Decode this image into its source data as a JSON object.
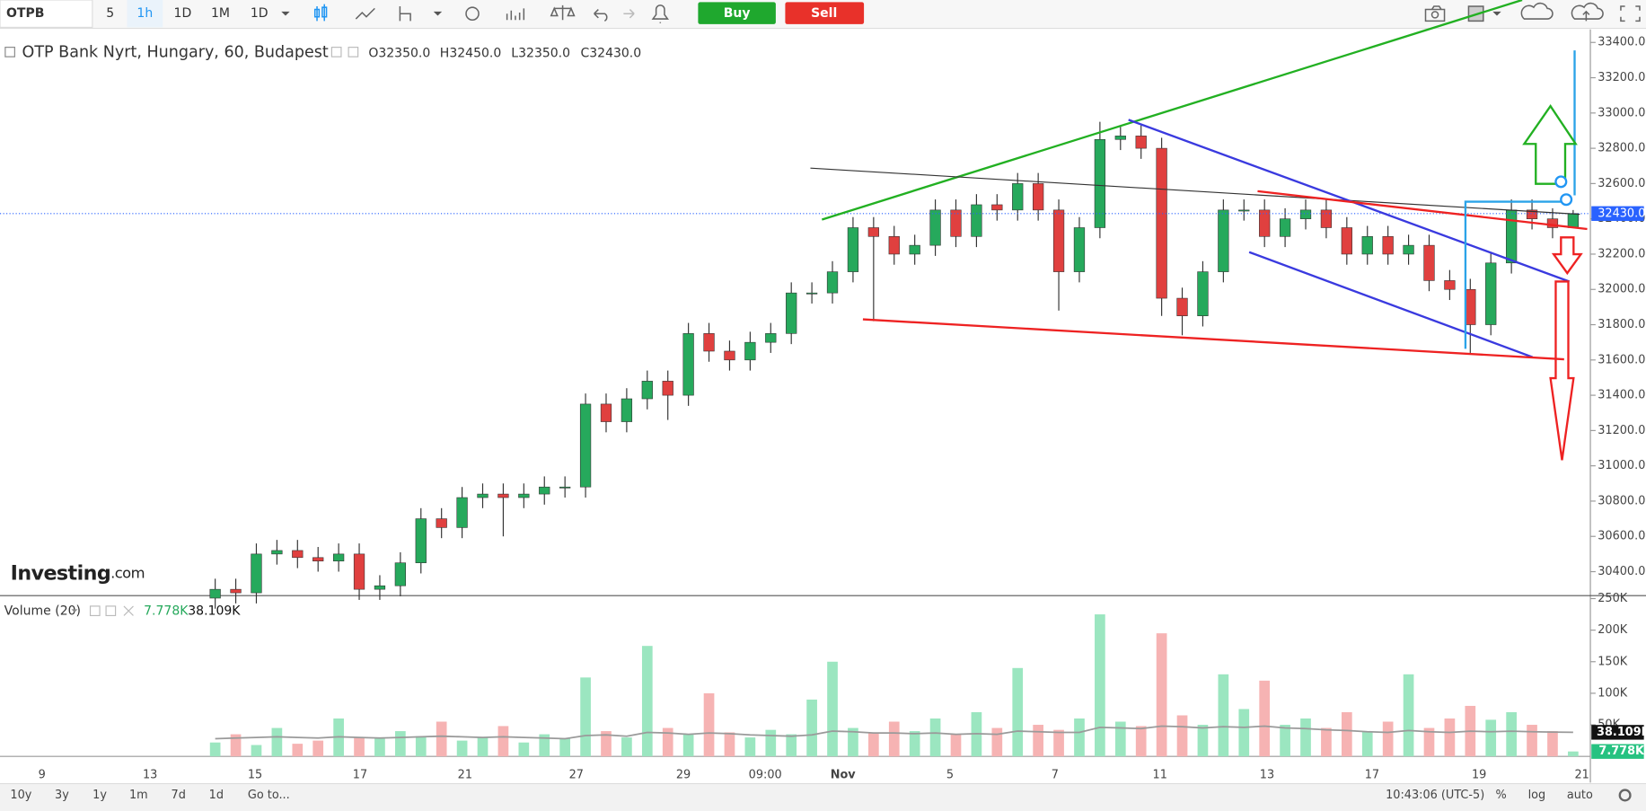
{
  "toolbar": {
    "symbol": "OTPB",
    "intervals": [
      "5",
      "1h",
      "1D",
      "1M",
      "1D"
    ],
    "buy": "Buy",
    "sell": "Sell"
  },
  "header": {
    "title": "OTP Bank Nyrt, Hungary, 60, Budapest",
    "open": "O32350.0",
    "high": "H32450.0",
    "low": "L32350.0",
    "close": "C32430.0"
  },
  "logo": {
    "brand": "Investing",
    "suffix": ".com"
  },
  "chart_data": {
    "type": "candlestick",
    "open": [
      30250,
      30300,
      30280,
      30500,
      30520,
      30480,
      30460,
      30500,
      30300,
      30320,
      30450,
      30700,
      30650,
      30820,
      30840,
      30820,
      30840,
      30880,
      30880,
      31350,
      31250,
      31380,
      31480,
      31400,
      31750,
      31650,
      31600,
      31700,
      31750,
      31980,
      31980,
      32100,
      32350,
      32300,
      32200,
      32250,
      32450,
      32300,
      32480,
      32450,
      32600,
      32450,
      32100,
      32350,
      32850,
      32870,
      32800,
      31950,
      31850,
      32100,
      32450,
      32450,
      32300,
      32400,
      32450,
      32350,
      32200,
      32300,
      32200,
      32250,
      32050,
      32000,
      31800,
      32150,
      32450,
      32400,
      32350
    ],
    "high": [
      30360,
      30360,
      30560,
      30580,
      30580,
      30540,
      30560,
      30560,
      30380,
      30510,
      30760,
      30760,
      30880,
      30900,
      30900,
      30900,
      30940,
      30940,
      31410,
      31410,
      31440,
      31540,
      31540,
      31810,
      31810,
      31710,
      31760,
      31810,
      32040,
      32040,
      32160,
      32410,
      32410,
      32360,
      32310,
      32510,
      32510,
      32540,
      32540,
      32660,
      32660,
      32510,
      32410,
      32950,
      32930,
      32930,
      32860,
      32010,
      32160,
      32510,
      32510,
      32510,
      32460,
      32510,
      32510,
      32410,
      32360,
      32360,
      32310,
      32310,
      32110,
      32060,
      32210,
      32510,
      32510,
      32460,
      32450
    ],
    "low": [
      30190,
      30220,
      30220,
      30440,
      30420,
      30400,
      30400,
      30240,
      30240,
      30260,
      30390,
      30590,
      30590,
      30760,
      30600,
      30760,
      30780,
      30820,
      30820,
      31190,
      31190,
      31320,
      31260,
      31340,
      31590,
      31540,
      31540,
      31640,
      31690,
      31920,
      31920,
      32040,
      31820,
      32140,
      32140,
      32190,
      32240,
      32240,
      32390,
      32390,
      32390,
      31880,
      32040,
      32290,
      32790,
      32740,
      31850,
      31740,
      31790,
      32040,
      32390,
      32240,
      32240,
      32340,
      32290,
      32140,
      32140,
      32140,
      32140,
      31990,
      31940,
      31640,
      31740,
      32090,
      32340,
      32290,
      32350
    ],
    "close": [
      30300,
      30280,
      30500,
      30520,
      30480,
      30460,
      30500,
      30300,
      30320,
      30450,
      30700,
      30650,
      30820,
      30840,
      30820,
      30840,
      30880,
      30880,
      31350,
      31250,
      31380,
      31480,
      31400,
      31750,
      31650,
      31600,
      31700,
      31750,
      31980,
      31980,
      32100,
      32350,
      32300,
      32200,
      32250,
      32450,
      32300,
      32480,
      32450,
      32600,
      32450,
      32100,
      32350,
      32850,
      32870,
      32800,
      31950,
      31850,
      32100,
      32450,
      32450,
      32300,
      32400,
      32450,
      32350,
      32200,
      32300,
      32200,
      32250,
      32050,
      32000,
      31800,
      32150,
      32450,
      32400,
      32350,
      32430
    ],
    "ylim": [
      30270,
      33450
    ],
    "yticks": [
      {
        "value": 30400,
        "label": "30400.0"
      },
      {
        "value": 30600,
        "label": "30600.0"
      },
      {
        "value": 30800,
        "label": "30800.0"
      },
      {
        "value": 31000,
        "label": "31000.0"
      },
      {
        "value": 31200,
        "label": "31200.0"
      },
      {
        "value": 31400,
        "label": "31400.0"
      },
      {
        "value": 31600,
        "label": "31600.0"
      },
      {
        "value": 31800,
        "label": "31800.0"
      },
      {
        "value": 32000,
        "label": "32000.0"
      },
      {
        "value": 32200,
        "label": "32200.0"
      },
      {
        "value": 32400,
        "label": "32400.0"
      },
      {
        "value": 32600,
        "label": "32600.0"
      },
      {
        "value": 32800,
        "label": "32800.0"
      },
      {
        "value": 33000,
        "label": "33000.0"
      },
      {
        "value": 33200,
        "label": "33200.0"
      },
      {
        "value": 33400,
        "label": "33400.0"
      }
    ],
    "last_price_label": "32430.0",
    "x_labels": [
      "9",
      "13",
      "15",
      "17",
      "21",
      "27",
      "29",
      "09:00",
      "Nov",
      "5",
      "7",
      "11",
      "13",
      "17",
      "19",
      "21"
    ],
    "up_color": "#26a95c",
    "down_color": "#e0403f"
  },
  "volume": {
    "type": "bar",
    "title": "Volume (20)",
    "values": [
      22000,
      35000,
      18000,
      45000,
      20000,
      25000,
      60000,
      30000,
      28000,
      40000,
      32000,
      55000,
      25000,
      30000,
      48000,
      22000,
      35000,
      28000,
      125000,
      40000,
      30000,
      175000,
      45000,
      35000,
      100000,
      38000,
      30000,
      42000,
      35000,
      90000,
      150000,
      45000,
      38000,
      55000,
      40000,
      60000,
      35000,
      70000,
      45000,
      140000,
      50000,
      42000,
      60000,
      225000,
      55000,
      48000,
      195000,
      65000,
      50000,
      130000,
      75000,
      120000,
      50000,
      60000,
      45000,
      70000,
      40000,
      55000,
      130000,
      45000,
      60000,
      80000,
      58000,
      70000,
      50000,
      40000,
      7778
    ],
    "ma": [
      28000,
      29000,
      30000,
      31000,
      30000,
      29000,
      31000,
      30000,
      29000,
      30000,
      31000,
      32000,
      31000,
      30000,
      31000,
      30000,
      29000,
      28000,
      33000,
      34000,
      32000,
      38000,
      37000,
      35000,
      37000,
      36000,
      34000,
      33000,
      32000,
      34000,
      40000,
      39000,
      37000,
      37000,
      36000,
      37000,
      35000,
      36000,
      35000,
      40000,
      39000,
      38000,
      38000,
      46000,
      45000,
      44000,
      48000,
      47000,
      45000,
      47000,
      46000,
      48000,
      45000,
      44000,
      42000,
      41000,
      39000,
      38000,
      41000,
      39000,
      38000,
      40000,
      39000,
      40000,
      39000,
      38500,
      38109
    ],
    "ylim": [
      0,
      253000
    ],
    "yticks": [
      {
        "value": 50000,
        "label": "50K"
      },
      {
        "value": 100000,
        "label": "100K"
      },
      {
        "value": 150000,
        "label": "150K"
      },
      {
        "value": 200000,
        "label": "200K"
      },
      {
        "value": 250000,
        "label": "250K"
      }
    ],
    "last_label": "7.778K",
    "ma_last_label": "38.109K",
    "up_color": "#9be6c0",
    "down_color": "#f6b3b3",
    "ma_color": "#9a9a9a"
  },
  "bottom_bar": {
    "ranges": [
      "10y",
      "3y",
      "1y",
      "1m",
      "7d",
      "1d"
    ],
    "goto": "Go to...",
    "clock": "10:43:06 (UTC-5)",
    "options": [
      "%",
      "log",
      "auto"
    ]
  }
}
